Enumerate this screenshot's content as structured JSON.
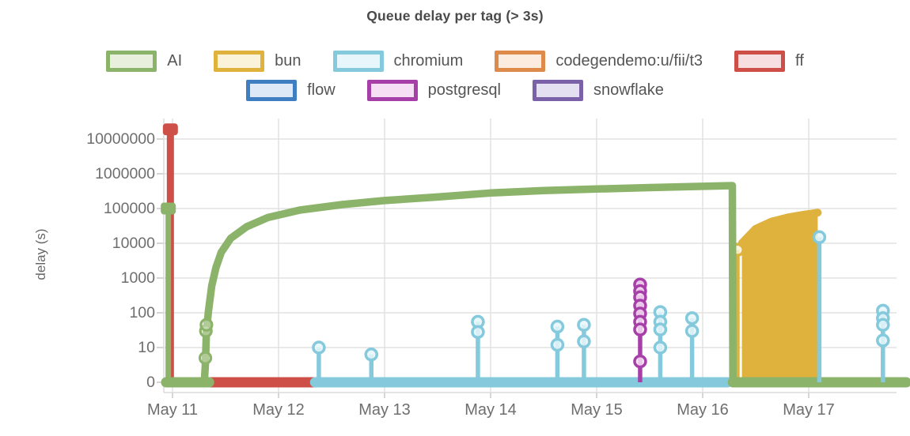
{
  "title": "Queue delay per tag (> 3s)",
  "chart_data": {
    "type": "line",
    "title": "Queue delay per tag (> 3s)",
    "xlabel": "",
    "ylabel": "delay (s)",
    "y_scale": "symlog",
    "y_linthresh": 10,
    "grid": true,
    "legend_position": "top",
    "y_ticks": [
      0,
      10,
      100,
      1000,
      10000,
      100000,
      1000000,
      10000000
    ],
    "y_tick_labels": [
      "0",
      "10",
      "100",
      "1000",
      "10000",
      "100000",
      "1000000",
      "10000000"
    ],
    "x_tick_labels": [
      "May 11",
      "May 12",
      "May 13",
      "May 14",
      "May 15",
      "May 16",
      "May 17"
    ],
    "x_tick_days": [
      11,
      12,
      13,
      14,
      15,
      16,
      17
    ],
    "x_domain_days": [
      10.92,
      17.84
    ],
    "legend_row_split": 5,
    "series": [
      {
        "name": "AI",
        "color": "#8cb36a",
        "tint": "#e8efdd",
        "events": {
          "vline": {
            "day": 10.96,
            "value": 100000,
            "marker": "square"
          },
          "zero_runs": [
            [
              10.94,
              11.345
            ],
            [
              16.285,
              17.92
            ]
          ],
          "curve": [
            [
              11.3,
              0
            ],
            [
              11.31,
              5
            ],
            [
              11.32,
              30
            ],
            [
              11.34,
              120
            ],
            [
              11.37,
              600
            ],
            [
              11.41,
              2000
            ],
            [
              11.46,
              5500
            ],
            [
              11.55,
              14000
            ],
            [
              11.7,
              30000
            ],
            [
              11.9,
              55000
            ],
            [
              12.2,
              90000
            ],
            [
              12.6,
              130000
            ],
            [
              13.0,
              170000
            ],
            [
              13.5,
              215000
            ],
            [
              14.0,
              280000
            ],
            [
              14.5,
              330000
            ],
            [
              15.0,
              365000
            ],
            [
              15.5,
              400000
            ],
            [
              16.0,
              435000
            ],
            [
              16.28,
              455000
            ]
          ],
          "drop_day": 16.285,
          "rise_markers": [
            [
              11.31,
              7
            ],
            [
              11.315,
              30
            ],
            [
              11.32,
              45
            ]
          ]
        }
      },
      {
        "name": "bun",
        "color": "#deb23d",
        "tint": "#faf2d9",
        "events": {
          "spikes": [
            {
              "day": 16.33,
              "values": [
                6500
              ]
            }
          ],
          "area": {
            "top": [
              [
                16.37,
                10000
              ],
              [
                16.5,
                26000
              ],
              [
                16.65,
                42000
              ],
              [
                16.8,
                55000
              ],
              [
                16.95,
                66000
              ],
              [
                17.05,
                73000
              ],
              [
                17.085,
                76000
              ]
            ]
          }
        }
      },
      {
        "name": "chromium",
        "color": "#84c9dc",
        "tint": "#e6f6fa",
        "events": {
          "zero_runs": [
            [
              12.345,
              16.235
            ]
          ],
          "spikes": [
            {
              "day": 12.38,
              "values": [
                10
              ]
            },
            {
              "day": 12.875,
              "values": [
                8
              ]
            },
            {
              "day": 13.88,
              "values": [
                55,
                28
              ]
            },
            {
              "day": 14.63,
              "values": [
                40,
                12
              ]
            },
            {
              "day": 14.88,
              "values": [
                45,
                15
              ]
            },
            {
              "day": 15.6,
              "values": [
                105,
                55,
                33,
                10
              ]
            },
            {
              "day": 15.9,
              "values": [
                70,
                30
              ]
            },
            {
              "day": 17.1,
              "values": [
                15000
              ]
            },
            {
              "day": 17.7,
              "values": [
                115,
                70,
                45,
                16
              ]
            }
          ]
        }
      },
      {
        "name": "codegendemo:u/fii/t3",
        "color": "#de8a4b",
        "tint": "#fbecdf",
        "events": {}
      },
      {
        "name": "ff",
        "color": "#cd4f47",
        "tint": "#f7dee1",
        "events": {
          "vline": {
            "day": 10.98,
            "value": 19000000,
            "marker": "round-rect"
          },
          "zero_runs": [
            [
              11.3,
              12.345
            ]
          ]
        }
      },
      {
        "name": "flow",
        "color": "#3e7ec1",
        "tint": "#dde9f6",
        "events": {}
      },
      {
        "name": "postgresql",
        "color": "#a73fa9",
        "tint": "#f6dff4",
        "events": {
          "spikes": [
            {
              "day": 15.41,
              "values": [
                650,
                420,
                280,
                160,
                95,
                55,
                33,
                6
              ],
              "capsule": [
                90,
                650
              ]
            }
          ]
        }
      },
      {
        "name": "snowflake",
        "color": "#7b61a8",
        "tint": "#e4dff1",
        "events": {}
      }
    ]
  }
}
